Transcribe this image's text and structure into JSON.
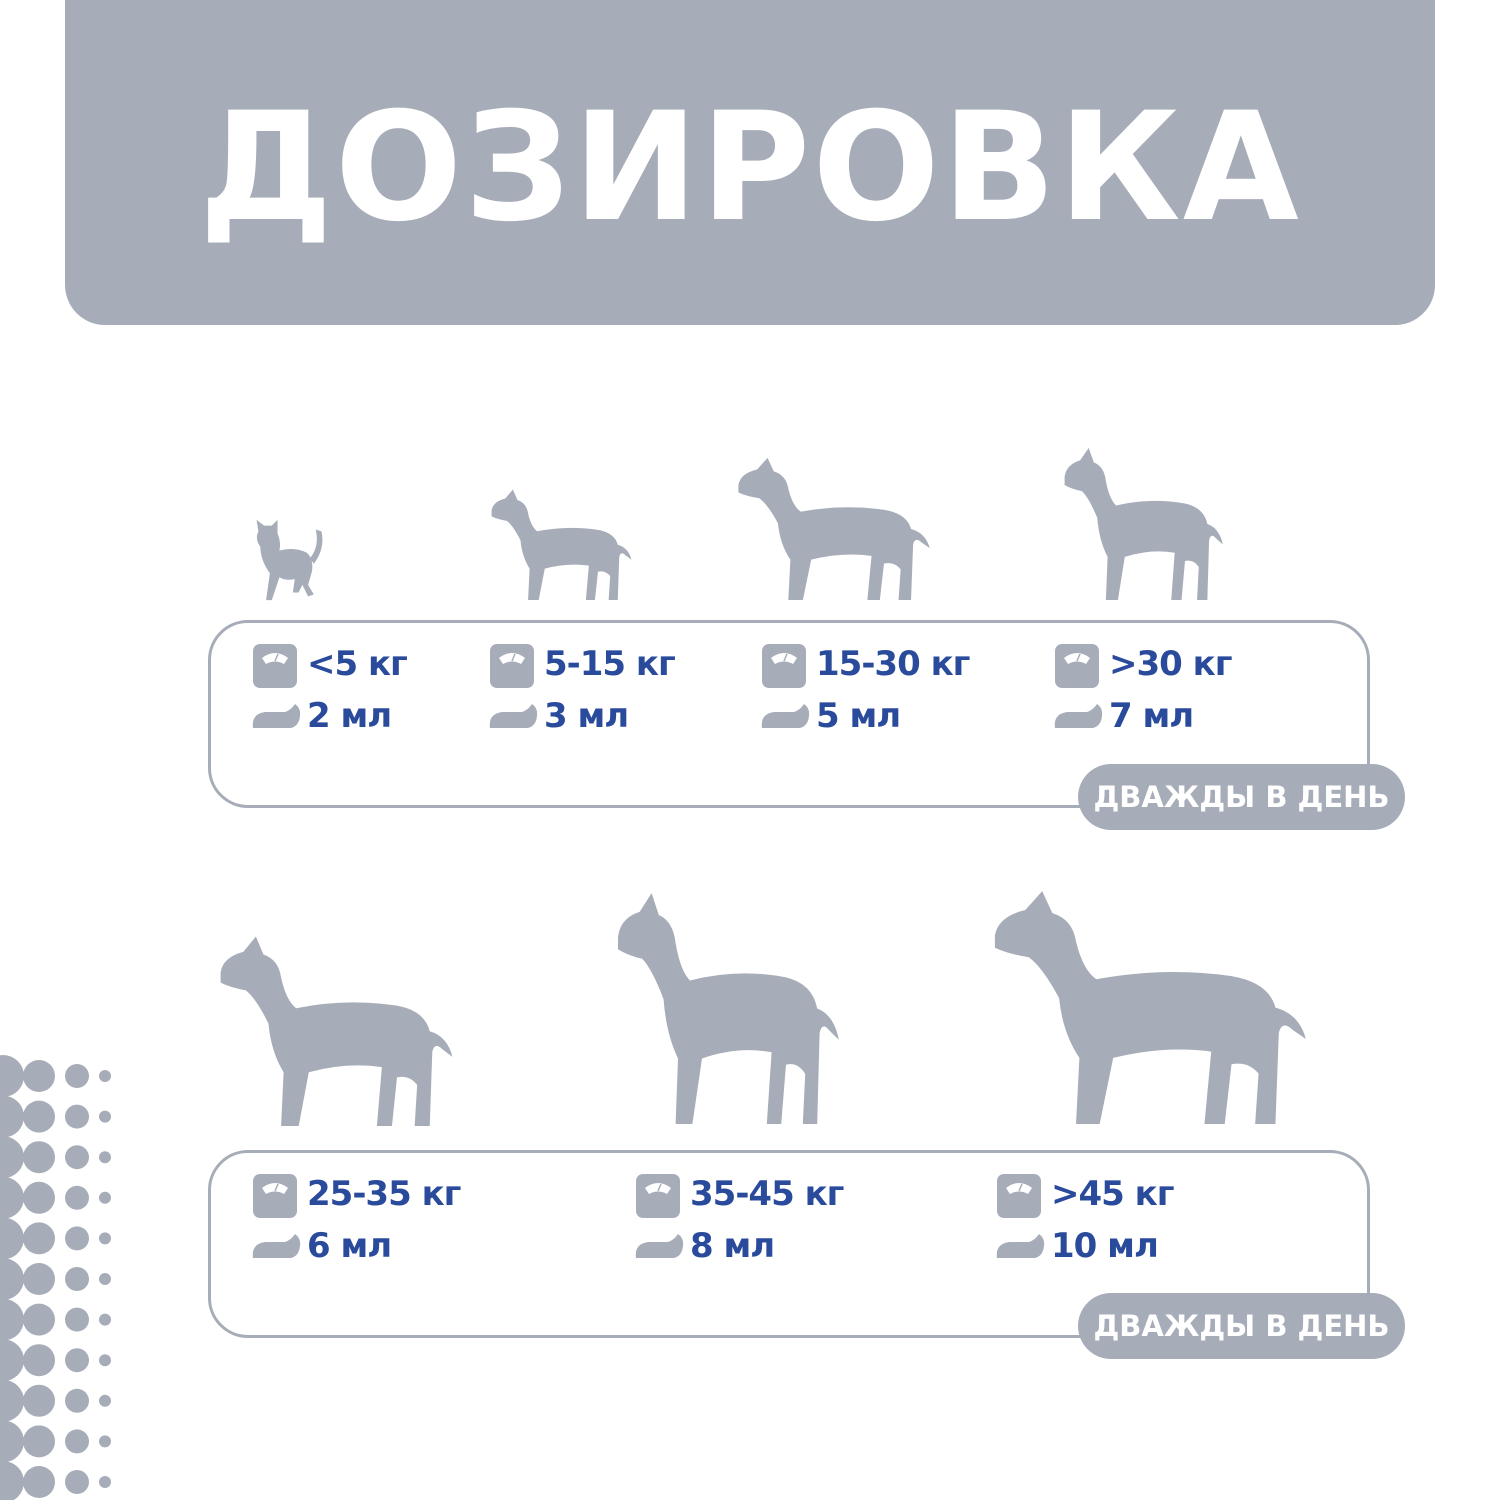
{
  "title": "ДОЗИРОВКА",
  "colors": {
    "gray": "#a7adb8",
    "blue": "#2a4b9b",
    "white": "#ffffff"
  },
  "icons": {
    "weight": "scale-icon",
    "dose": "liquid-drop-icon"
  },
  "groups": [
    {
      "badge": "ДВАЖДЫ В ДЕНЬ",
      "items": [
        {
          "animal": "cat",
          "weight": "<5 кг",
          "dose": "2 мл"
        },
        {
          "animal": "schnauzer",
          "weight": "5-15 кг",
          "dose": "3 мл"
        },
        {
          "animal": "pointer",
          "weight": "15-30 кг",
          "dose": "5 мл"
        },
        {
          "animal": "spitz",
          "weight": ">30 кг",
          "dose": "7 мл"
        }
      ]
    },
    {
      "badge": "ДВАЖДЫ В ДЕНЬ",
      "items": [
        {
          "animal": "staffordshire",
          "weight": "25-35 кг",
          "dose": "6 мл"
        },
        {
          "animal": "great-dane",
          "weight": "35-45 кг",
          "dose": "8 мл"
        },
        {
          "animal": "retriever",
          "weight": ">45 кг",
          "dose": "10 мл"
        }
      ]
    }
  ]
}
